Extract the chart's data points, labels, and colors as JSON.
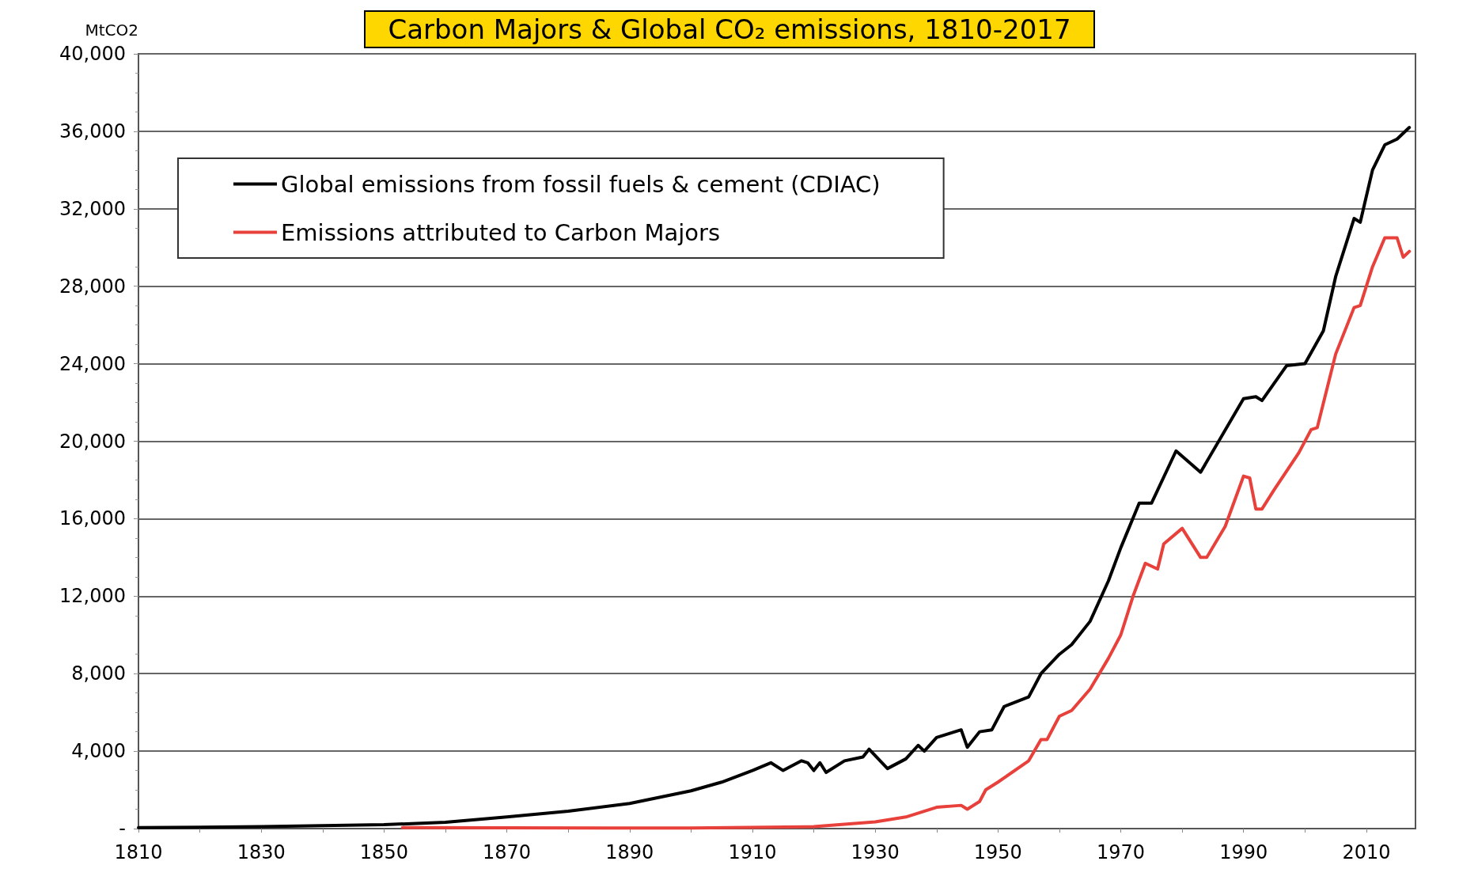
{
  "chart_data": {
    "type": "line",
    "title": "Carbon Majors & Global CO₂ emissions, 1810-2017",
    "ylabel": "MtCO2",
    "xlim": [
      1810,
      2018
    ],
    "xticks": [
      1810,
      {
        "value": 1820,
        "label": null
      },
      1830,
      {
        "value": 1840,
        "label": null
      },
      1850,
      {
        "value": 1860,
        "label": null
      },
      1870,
      {
        "value": 1880,
        "label": null
      },
      1890,
      {
        "value": 1900,
        "label": null
      },
      1910,
      {
        "value": 1920,
        "label": null
      },
      1930,
      {
        "value": 1940,
        "label": null
      },
      1950,
      {
        "value": 1960,
        "label": null
      },
      1970,
      {
        "value": 1980,
        "label": null
      },
      1990,
      {
        "value": 2000,
        "label": null
      },
      2010
    ],
    "ylim": [
      0,
      40000
    ],
    "yticks": [
      {
        "value": 0,
        "label": "-"
      },
      {
        "value": 4000,
        "label": "4,000"
      },
      {
        "value": 8000,
        "label": "8,000"
      },
      {
        "value": 12000,
        "label": "12,000"
      },
      {
        "value": 16000,
        "label": "16,000"
      },
      {
        "value": 20000,
        "label": "20,000"
      },
      {
        "value": 24000,
        "label": "24,000"
      },
      {
        "value": 28000,
        "label": "28,000"
      },
      {
        "value": 32000,
        "label": "32,000"
      },
      {
        "value": 36000,
        "label": "36,000"
      },
      {
        "value": 40000,
        "label": "40,000"
      }
    ],
    "grid": "y",
    "legend": "top left",
    "marker": "none",
    "line_style": "solid",
    "series": [
      {
        "name": "Global emissions from fossil fuels & cement (CDIAC)",
        "color": "#000000",
        "x": [
          1810,
          1830,
          1850,
          1860,
          1870,
          1880,
          1890,
          1900,
          1905,
          1910,
          1913,
          1915,
          1918,
          1919,
          1920,
          1921,
          1922,
          1925,
          1928,
          1929,
          1932,
          1935,
          1937,
          1938,
          1940,
          1944,
          1945,
          1947,
          1949,
          1951,
          1955,
          1957,
          1960,
          1962,
          1965,
          1968,
          1970,
          1973,
          1975,
          1979,
          1983,
          1990,
          1992,
          1993,
          1997,
          2000,
          2003,
          2005,
          2008,
          2009,
          2011,
          2013,
          2015,
          2017
        ],
        "values": [
          50,
          100,
          200,
          330,
          600,
          900,
          1300,
          1950,
          2400,
          3000,
          3400,
          3000,
          3500,
          3400,
          3000,
          3400,
          2900,
          3500,
          3700,
          4100,
          3100,
          3600,
          4300,
          4000,
          4700,
          5100,
          4200,
          5000,
          5100,
          6300,
          6800,
          8000,
          9000,
          9500,
          10700,
          12800,
          14500,
          16800,
          16800,
          19500,
          18400,
          22200,
          22300,
          22100,
          23900,
          24000,
          25700,
          28500,
          31500,
          31300,
          34000,
          35300,
          35600,
          36200
        ]
      },
      {
        "name": "Emissions attributed to Carbon Majors",
        "color": "#e8403a",
        "x": [
          1853,
          1870,
          1900,
          1920,
          1930,
          1935,
          1940,
          1944,
          1945,
          1947,
          1948,
          1950,
          1955,
          1957,
          1958,
          1960,
          1962,
          1965,
          1968,
          1970,
          1972,
          1974,
          1976,
          1977,
          1980,
          1983,
          1984,
          1987,
          1990,
          1991,
          1992,
          1993,
          1995,
          1999,
          2001,
          2002,
          2005,
          2008,
          2009,
          2011,
          2013,
          2015,
          2016,
          2017
        ],
        "values": [
          50,
          40,
          30,
          100,
          350,
          600,
          1100,
          1200,
          1000,
          1400,
          2000,
          2400,
          3500,
          4600,
          4600,
          5800,
          6100,
          7200,
          8800,
          10000,
          12000,
          13700,
          13400,
          14700,
          15500,
          14000,
          14000,
          15600,
          18200,
          18100,
          16500,
          16500,
          17500,
          19400,
          20600,
          20700,
          24500,
          26900,
          27000,
          29000,
          30500,
          30500,
          29500,
          29800
        ]
      }
    ]
  }
}
